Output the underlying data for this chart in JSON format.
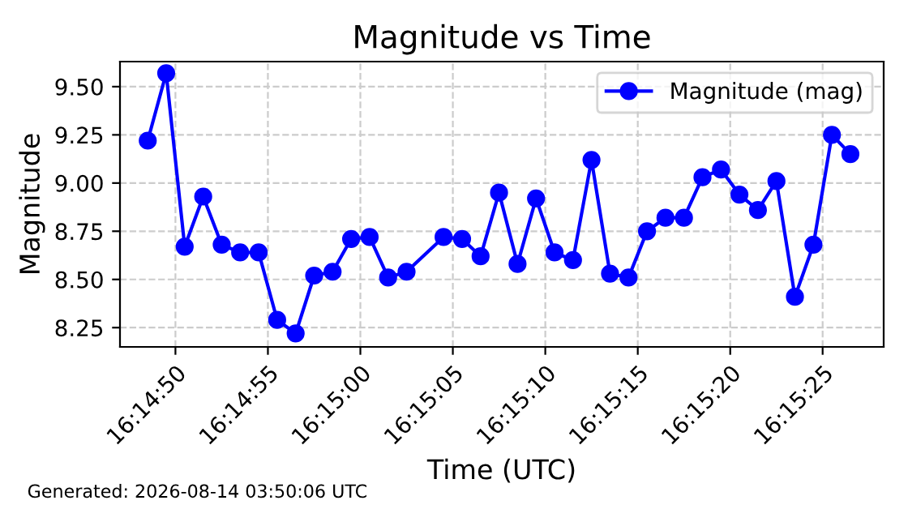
{
  "chart_data": {
    "type": "line",
    "title": "Magnitude vs Time",
    "xlabel": "Time (UTC)",
    "ylabel": "Magnitude",
    "x": [
      16.246806,
      16.247083,
      16.247361,
      16.247639,
      16.247917,
      16.248194,
      16.248472,
      16.24875,
      16.249028,
      16.249306,
      16.249583,
      16.249861,
      16.250139,
      16.250417,
      16.250694,
      16.25125,
      16.251528,
      16.251806,
      16.252083,
      16.252361,
      16.252639,
      16.252917,
      16.253194,
      16.253472,
      16.25375,
      16.254028,
      16.254306,
      16.254583,
      16.254861,
      16.255139,
      16.255417,
      16.255694,
      16.255972,
      16.25625,
      16.256528,
      16.256806,
      16.257083,
      16.257361
    ],
    "series": [
      {
        "name": "Magnitude (mag)",
        "color": "#0000ff",
        "values": [
          9.22,
          9.57,
          8.67,
          8.93,
          8.68,
          8.64,
          8.64,
          8.29,
          8.22,
          8.52,
          8.54,
          8.71,
          8.72,
          8.51,
          8.54,
          8.72,
          8.71,
          8.62,
          8.95,
          8.58,
          8.92,
          8.64,
          8.6,
          9.12,
          8.53,
          8.51,
          8.75,
          8.82,
          8.82,
          9.03,
          9.07,
          8.94,
          8.86,
          9.01,
          8.41,
          8.68,
          9.25,
          9.15
        ]
      }
    ],
    "xlim": [
      16.246389,
      16.257861
    ],
    "xticks": [
      {
        "value": 16.247222,
        "label": "16:14:50"
      },
      {
        "value": 16.248611,
        "label": "16:14:55"
      },
      {
        "value": 16.25,
        "label": "16:15:00"
      },
      {
        "value": 16.251389,
        "label": "16:15:05"
      },
      {
        "value": 16.252778,
        "label": "16:15:10"
      },
      {
        "value": 16.254167,
        "label": "16:15:15"
      },
      {
        "value": 16.255556,
        "label": "16:15:20"
      },
      {
        "value": 16.256944,
        "label": "16:15:25"
      }
    ],
    "ylim": [
      8.15,
      9.63
    ],
    "yticks": [
      {
        "value": 8.25,
        "label": "8.25"
      },
      {
        "value": 8.5,
        "label": "8.50"
      },
      {
        "value": 8.75,
        "label": "8.75"
      },
      {
        "value": 9.0,
        "label": "9.00"
      },
      {
        "value": 9.25,
        "label": "9.25"
      },
      {
        "value": 9.5,
        "label": "9.50"
      }
    ],
    "grid": true,
    "legend": "top right",
    "marker": "circle",
    "line_style": "solid",
    "annotations": [
      "Generated: 2026-08-14 03:50:06 UTC"
    ]
  }
}
